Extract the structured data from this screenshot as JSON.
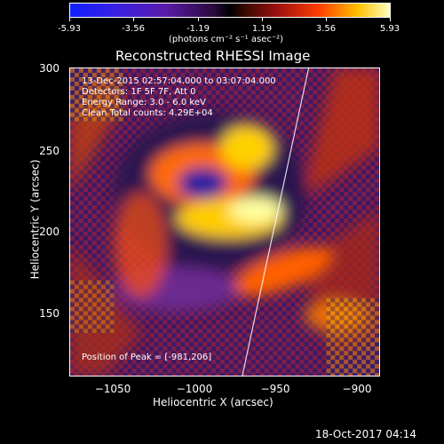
{
  "colorbar": {
    "ticks": [
      "-5.93",
      "-3.56",
      "-1.19",
      "1.19",
      "3.56",
      "5.93"
    ],
    "unit": "(photons cm⁻² s⁻¹ asec⁻²)"
  },
  "plot": {
    "title": "Reconstructed RHESSI Image",
    "info_lines": [
      "13-Dec-2015 02:57:04.000 to 03:07:04.000",
      "Detectors: 1F 5F 7F, Att 0",
      "Energy Range: 3.0 - 6.0 keV",
      "Clean     Total counts: 4.29E+04"
    ],
    "peak_text": "Position of Peak = [-981,206]",
    "xlabel": "Heliocentric X (arcsec)",
    "ylabel": "Heliocentric Y (arcsec)",
    "xticks": [
      "−1050",
      "−1000",
      "−950",
      "−900"
    ],
    "yticks": [
      "300",
      "250",
      "200",
      "150"
    ]
  },
  "footer": {
    "timestamp": "18-Oct-2017 04:14"
  }
}
